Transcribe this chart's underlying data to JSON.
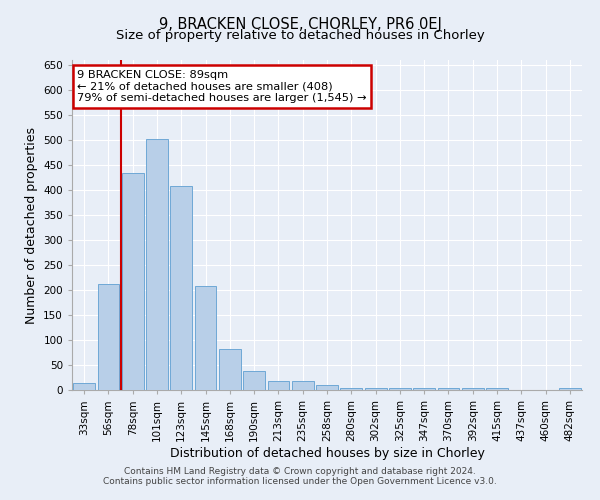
{
  "title": "9, BRACKEN CLOSE, CHORLEY, PR6 0EJ",
  "subtitle": "Size of property relative to detached houses in Chorley",
  "xlabel": "Distribution of detached houses by size in Chorley",
  "ylabel": "Number of detached properties",
  "categories": [
    "33sqm",
    "56sqm",
    "78sqm",
    "101sqm",
    "123sqm",
    "145sqm",
    "168sqm",
    "190sqm",
    "213sqm",
    "235sqm",
    "258sqm",
    "280sqm",
    "302sqm",
    "325sqm",
    "347sqm",
    "370sqm",
    "392sqm",
    "415sqm",
    "437sqm",
    "460sqm",
    "482sqm"
  ],
  "values": [
    15,
    212,
    435,
    503,
    408,
    208,
    83,
    38,
    18,
    18,
    10,
    5,
    4,
    4,
    4,
    4,
    4,
    4,
    0,
    0,
    4
  ],
  "bar_color": "#b8cfe8",
  "bar_edge_color": "#6fa8d6",
  "annotation_title": "9 BRACKEN CLOSE: 89sqm",
  "annotation_line1": "← 21% of detached houses are smaller (408)",
  "annotation_line2": "79% of semi-detached houses are larger (1,545) →",
  "vline_color": "#cc0000",
  "annotation_box_color": "#ffffff",
  "annotation_box_edge": "#cc0000",
  "footer1": "Contains HM Land Registry data © Crown copyright and database right 2024.",
  "footer2": "Contains public sector information licensed under the Open Government Licence v3.0.",
  "ylim": [
    0,
    660
  ],
  "yticks": [
    0,
    50,
    100,
    150,
    200,
    250,
    300,
    350,
    400,
    450,
    500,
    550,
    600,
    650
  ],
  "background_color": "#e8eef7",
  "plot_background": "#e8eef7",
  "grid_color": "#ffffff",
  "title_fontsize": 10.5,
  "subtitle_fontsize": 9.5,
  "tick_fontsize": 7.5,
  "label_fontsize": 9,
  "footer_fontsize": 6.5
}
